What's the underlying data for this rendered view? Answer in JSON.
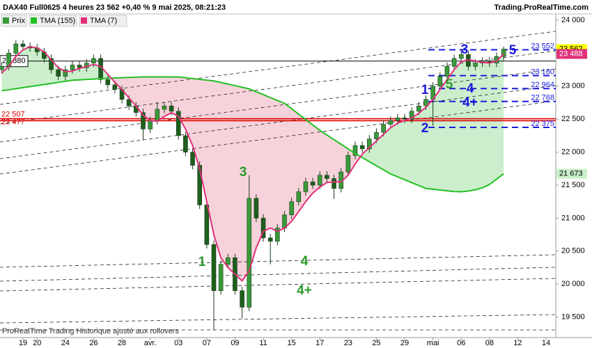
{
  "chart_data": {
    "type": "candlestick",
    "title": "DAX40 Full0625 4 heures 23 562 +0,40 % 9 mai 2025, 08:21:23",
    "source": "Trading.ProRealTime.com",
    "footer": "ProRealTime Trading  Historique ajusté aux rollovers",
    "categories": [
      null,
      null,
      null,
      "19",
      null,
      "20",
      null,
      null,
      null,
      "24",
      null,
      null,
      null,
      "26",
      null,
      null,
      null,
      "28",
      null,
      null,
      null,
      "avr.",
      null,
      null,
      null,
      "03",
      null,
      null,
      null,
      "07",
      null,
      null,
      null,
      "09",
      null,
      null,
      null,
      "11",
      null,
      null,
      null,
      "15",
      null,
      null,
      null,
      "17",
      null,
      null,
      null,
      "23",
      null,
      null,
      null,
      "25",
      null,
      null,
      null,
      "29",
      null,
      null,
      null,
      "mai",
      null,
      null,
      null,
      "06",
      null,
      null,
      null,
      "08",
      null,
      null,
      null,
      "12",
      null,
      null,
      null,
      "14"
    ],
    "ylim": [
      19190,
      24095
    ],
    "yticks": [
      {
        "value": 19500,
        "label": "19 500"
      },
      {
        "value": 20000,
        "label": "20 000"
      },
      {
        "value": 20500,
        "label": "20 500"
      },
      {
        "value": 21000,
        "label": "21 000"
      },
      {
        "value": 21500,
        "label": "21 500"
      },
      {
        "value": 22000,
        "label": "22 000"
      },
      {
        "value": 22500,
        "label": "22 500"
      },
      {
        "value": 23000,
        "label": "23 000"
      },
      {
        "value": 23500,
        "label": "23 500"
      },
      {
        "value": 24000,
        "label": "24 000"
      }
    ],
    "series": [
      {
        "name": "Prix",
        "type": "candlestick",
        "up_color": "#3a9a3a",
        "down_color": "#1e5e1e",
        "last_label": "23 562",
        "label_color": "#ffff00",
        "open": [
          23250,
          23300,
          23500,
          23640,
          23600,
          23580,
          23520,
          23420,
          23250,
          23150,
          23250,
          23320,
          23280,
          23350,
          23420,
          23100,
          23020,
          22950,
          22800,
          22700,
          22600,
          22350,
          22480,
          22650,
          22700,
          22620,
          22250,
          22000,
          21800,
          21200,
          20600,
          19900,
          20300,
          20400,
          19900,
          19650,
          21300,
          21000,
          20700,
          20650,
          20850,
          21050,
          21250,
          21400,
          21550,
          21500,
          21650,
          21600,
          21450,
          21700,
          21950,
          22100,
          22050,
          22200,
          22300,
          22420,
          22480,
          22520,
          22500,
          22620,
          22700,
          22800,
          23000,
          23150,
          23300,
          23420,
          23480,
          23300,
          23350,
          23380,
          23350,
          23450,
          null,
          null,
          null,
          null,
          null,
          null
        ],
        "high": [
          23360,
          23560,
          23700,
          23700,
          23660,
          23640,
          23580,
          23480,
          23310,
          23310,
          23380,
          23380,
          23410,
          23480,
          23480,
          23160,
          23080,
          23010,
          22860,
          22760,
          22660,
          22540,
          22760,
          22760,
          22760,
          22680,
          22310,
          22060,
          21860,
          21260,
          20660,
          20360,
          20460,
          20460,
          19960,
          21650,
          21360,
          21060,
          20760,
          20910,
          21110,
          21310,
          21460,
          21610,
          21610,
          21710,
          21710,
          21660,
          21760,
          22010,
          22160,
          22160,
          22260,
          22360,
          22480,
          22540,
          22580,
          22580,
          22680,
          22760,
          22860,
          23060,
          23210,
          23360,
          23480,
          23540,
          23540,
          23410,
          23440,
          23440,
          23510,
          23600,
          null,
          null,
          null,
          null,
          null,
          null
        ],
        "low": [
          23190,
          23240,
          23440,
          23540,
          23520,
          23460,
          23360,
          23190,
          23090,
          23090,
          23190,
          23220,
          23220,
          23290,
          23040,
          22960,
          22890,
          22740,
          22640,
          22540,
          22180,
          22290,
          22420,
          22590,
          22560,
          22190,
          21940,
          21740,
          21140,
          20540,
          19300,
          19840,
          20240,
          19840,
          19480,
          19590,
          20940,
          20640,
          20300,
          20590,
          20790,
          20990,
          21190,
          21340,
          21440,
          21440,
          21540,
          21290,
          21390,
          21640,
          21890,
          21990,
          21990,
          22140,
          22240,
          22360,
          22420,
          22440,
          22440,
          22560,
          22640,
          22400,
          22940,
          23090,
          23240,
          23360,
          23240,
          23240,
          23290,
          23290,
          23290,
          23390,
          null,
          null,
          null,
          null,
          null,
          null
        ],
        "close": [
          23300,
          23500,
          23640,
          23600,
          23580,
          23520,
          23420,
          23250,
          23150,
          23250,
          23320,
          23280,
          23350,
          23420,
          23100,
          23020,
          22950,
          22800,
          22700,
          22600,
          22350,
          22480,
          22650,
          22700,
          22620,
          22250,
          22000,
          21800,
          21200,
          20600,
          19900,
          20300,
          20400,
          19900,
          19650,
          21300,
          21000,
          20700,
          20650,
          20850,
          21050,
          21250,
          21400,
          21550,
          21500,
          21650,
          21600,
          21450,
          21700,
          21950,
          22100,
          22050,
          22200,
          22300,
          22420,
          22480,
          22520,
          22500,
          22620,
          22700,
          22800,
          23000,
          23150,
          23300,
          23420,
          23480,
          23300,
          23350,
          23380,
          23350,
          23450,
          23562,
          null,
          null,
          null,
          null,
          null,
          null
        ]
      },
      {
        "name": "TMA (155)",
        "type": "line",
        "color": "#22c022",
        "last_label": "21 673",
        "label_color": "#c8f0c8",
        "values": [
          22930,
          22946,
          22962,
          22978,
          22994,
          23010,
          23026,
          23042,
          23058,
          23074,
          23090,
          23096,
          23102,
          23108,
          23114,
          23120,
          23124,
          23128,
          23132,
          23136,
          23140,
          23140,
          23140,
          23140,
          23140,
          23140,
          23128,
          23116,
          23104,
          23092,
          23080,
          23056,
          23032,
          23008,
          22984,
          22960,
          22916,
          22872,
          22828,
          22784,
          22740,
          22658,
          22576,
          22494,
          22412,
          22330,
          22260,
          22190,
          22120,
          22050,
          21980,
          21918,
          21856,
          21794,
          21732,
          21670,
          21626,
          21582,
          21538,
          21494,
          21450,
          21438,
          21426,
          21414,
          21402,
          21400,
          21410,
          21430,
          21460,
          21510,
          21590,
          21673,
          null,
          null,
          null,
          null,
          null,
          null
        ]
      },
      {
        "name": "TMA (7)",
        "type": "line",
        "color": "#e0307a",
        "last_label": "23 488",
        "label_color": "#e0307a",
        "values": [
          23200,
          23300,
          23450,
          23550,
          23600,
          23580,
          23520,
          23400,
          23280,
          23220,
          23230,
          23270,
          23300,
          23330,
          23300,
          23180,
          23060,
          22950,
          22820,
          22700,
          22560,
          22480,
          22470,
          22540,
          22600,
          22540,
          22350,
          22100,
          21750,
          21250,
          20750,
          20400,
          20250,
          20150,
          20050,
          20200,
          20550,
          20800,
          20850,
          20800,
          20850,
          20950,
          21100,
          21250,
          21380,
          21470,
          21540,
          21550,
          21550,
          21650,
          21820,
          21970,
          22070,
          22170,
          22270,
          22370,
          22440,
          22480,
          22520,
          22590,
          22680,
          22800,
          22950,
          23100,
          23250,
          23370,
          23400,
          23380,
          23360,
          23350,
          23380,
          23488,
          null,
          null,
          null,
          null,
          null,
          null
        ]
      }
    ],
    "reference_lines": [
      {
        "value": 23380,
        "label": "23 380",
        "color": "#000000"
      }
    ],
    "support_lines": [
      {
        "value": 22507,
        "label": "22 507",
        "color": "#e00000"
      },
      {
        "value": 22477,
        "label": "22 477",
        "color": "#e00000"
      }
    ],
    "levels": [
      {
        "value": 23552,
        "label": "23 552"
      },
      {
        "value": 23160,
        "label": "23 160"
      },
      {
        "value": 22964,
        "label": "22 964"
      },
      {
        "value": 22768,
        "label": "22 768"
      },
      {
        "value": 22375,
        "label": "22 375"
      }
    ],
    "levels_color": "#1a1adb",
    "annotations": [
      {
        "text": "1",
        "color": "#1a1adb"
      },
      {
        "text": "2",
        "color": "#1a1adb"
      },
      {
        "text": "3",
        "color": "#1a1adb"
      },
      {
        "text": "4",
        "color": "#1a1adb"
      },
      {
        "text": "4+",
        "color": "#1a1adb"
      },
      {
        "text": "5",
        "color": "#1a1adb"
      },
      {
        "text": "5",
        "color": "#2a9a2a"
      },
      {
        "text": "3",
        "color": "#2a9a2a"
      },
      {
        "text": "1",
        "color": "#2a9a2a"
      },
      {
        "text": "4",
        "color": "#2a9a2a"
      },
      {
        "text": "4+",
        "color": "#2a9a2a"
      }
    ]
  }
}
